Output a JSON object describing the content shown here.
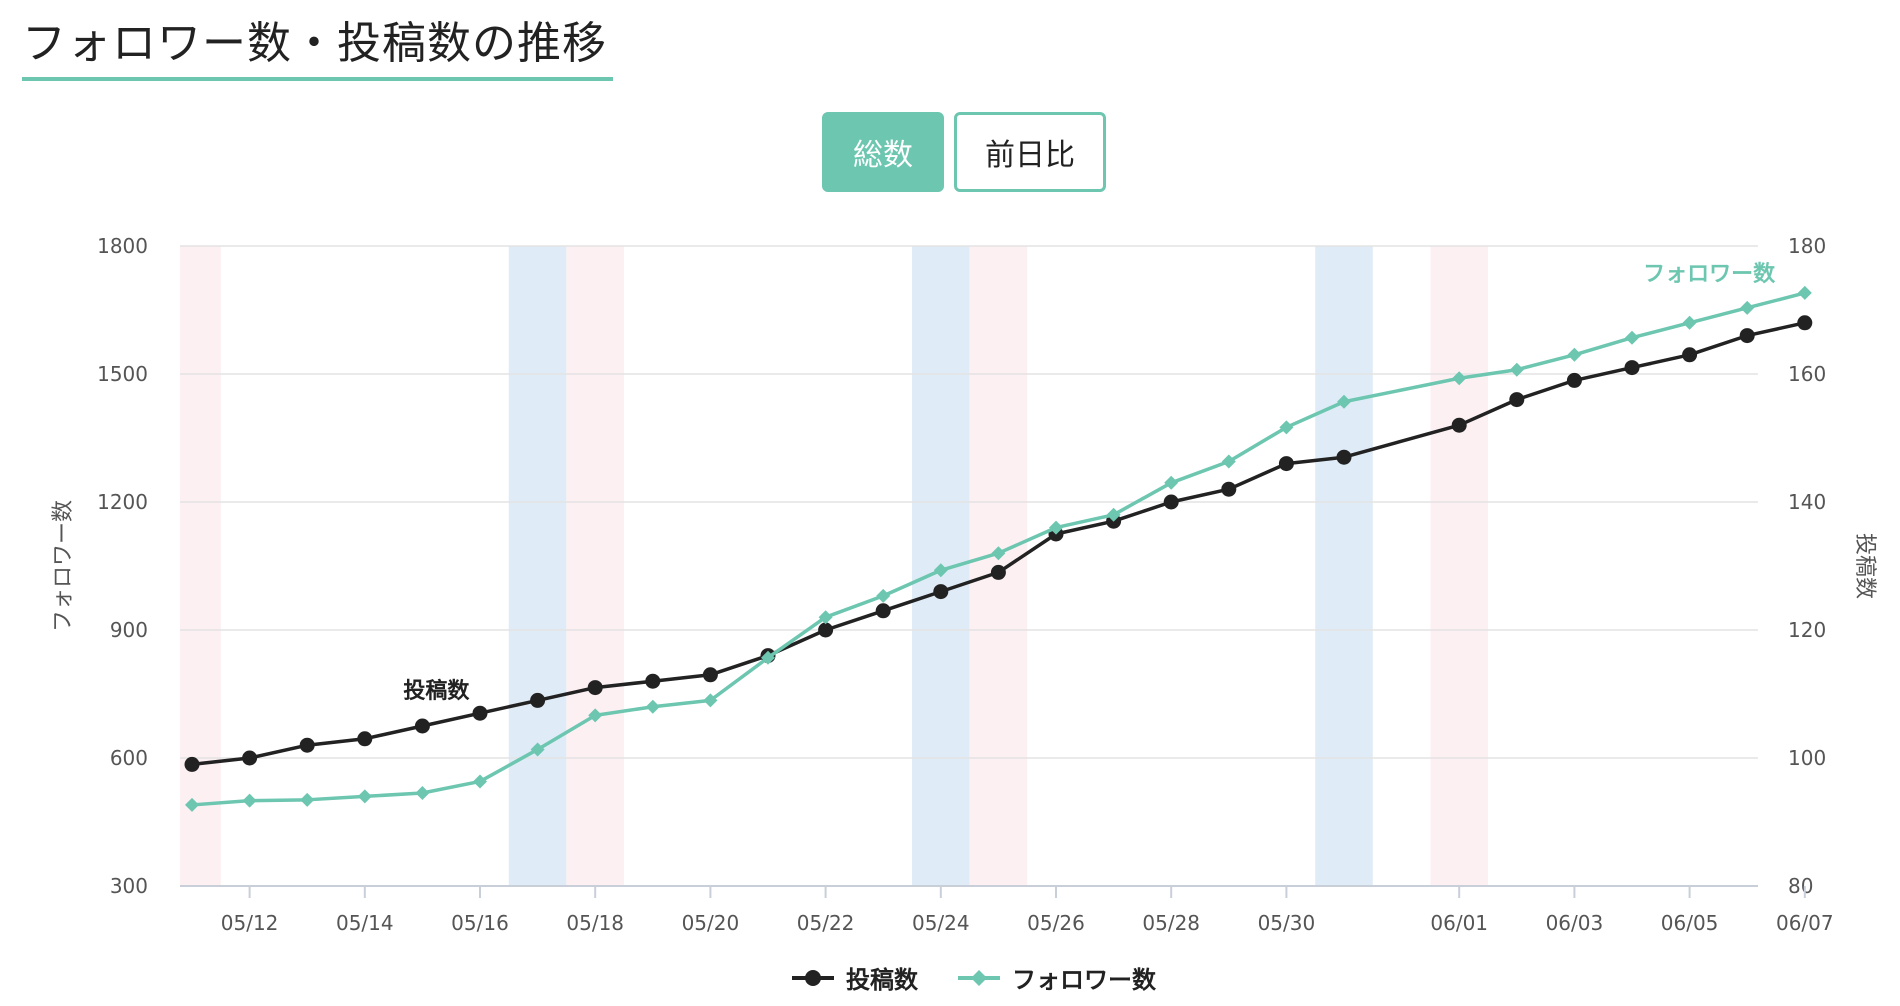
{
  "title": "フォロワー数・投稿数の推移",
  "toggle": {
    "total_label": "総数",
    "daily_label": "前日比"
  },
  "colors": {
    "accent": "#6cc6b0",
    "posts": "#222222",
    "weekend_blue": "#dfecf7",
    "weekend_pink": "#fdf0f2",
    "grid": "#e3e3e3"
  },
  "chart_data": {
    "type": "line",
    "x": [
      "05/11",
      "05/12",
      "05/13",
      "05/14",
      "05/15",
      "05/16",
      "05/17",
      "05/18",
      "05/19",
      "05/20",
      "05/21",
      "05/22",
      "05/23",
      "05/24",
      "05/25",
      "05/26",
      "05/27",
      "05/28",
      "05/29",
      "05/30",
      "05/31",
      "06/01",
      "06/02",
      "06/03",
      "06/04",
      "06/05",
      "06/06",
      "06/07"
    ],
    "x_tick_labels": [
      "05/12",
      "05/14",
      "05/16",
      "05/18",
      "05/20",
      "05/22",
      "05/24",
      "05/26",
      "05/28",
      "05/30",
      "06/01",
      "06/03",
      "06/05",
      "06/07"
    ],
    "y_left": {
      "label": "フォロワー数",
      "range": [
        300,
        1800
      ],
      "ticks": [
        "1800",
        "1500",
        "1200",
        "900",
        "600",
        "300"
      ]
    },
    "y_right": {
      "label": "投稿数",
      "range": [
        80,
        180
      ],
      "ticks": [
        "180",
        "160",
        "140",
        "120",
        "100",
        "80"
      ]
    },
    "series": [
      {
        "name": "投稿数",
        "axis": "right",
        "color": "#222222",
        "marker": "circle",
        "values": [
          99,
          100,
          102,
          103,
          105,
          107,
          109,
          111,
          112,
          113,
          116,
          120,
          123,
          126,
          129,
          135,
          137,
          140,
          142,
          146,
          147,
          152,
          156,
          159,
          161,
          163,
          166,
          168
        ]
      },
      {
        "name": "フォロワー数",
        "axis": "left",
        "color": "#6cc6b0",
        "marker": "diamond",
        "values": [
          490,
          500,
          502,
          510,
          518,
          545,
          620,
          700,
          720,
          735,
          835,
          930,
          980,
          1040,
          1080,
          1140,
          1170,
          1245,
          1295,
          1375,
          1435,
          1490,
          1510,
          1545,
          1585,
          1620,
          1655,
          1690
        ]
      }
    ],
    "series_labels": [
      {
        "text": "投稿数",
        "series": "投稿数"
      },
      {
        "text": "フォロワー数",
        "series": "フォロワー数"
      }
    ],
    "weekend_bands": [
      {
        "from": "05/10",
        "to": "05/11",
        "kind": "holiday"
      },
      {
        "from": "05/17",
        "to": "05/17",
        "kind": "saturday"
      },
      {
        "from": "05/18",
        "to": "05/18",
        "kind": "holiday"
      },
      {
        "from": "05/24",
        "to": "05/24",
        "kind": "saturday"
      },
      {
        "from": "05/25",
        "to": "05/25",
        "kind": "holiday"
      },
      {
        "from": "05/31",
        "to": "05/31",
        "kind": "saturday"
      },
      {
        "from": "06/01",
        "to": "06/01",
        "kind": "holiday"
      }
    ],
    "grid": true,
    "legend": "bottom-center"
  },
  "legend": [
    {
      "label": "投稿数",
      "color": "#222222",
      "marker": "circle"
    },
    {
      "label": "フォロワー数",
      "color": "#6cc6b0",
      "marker": "diamond"
    }
  ]
}
